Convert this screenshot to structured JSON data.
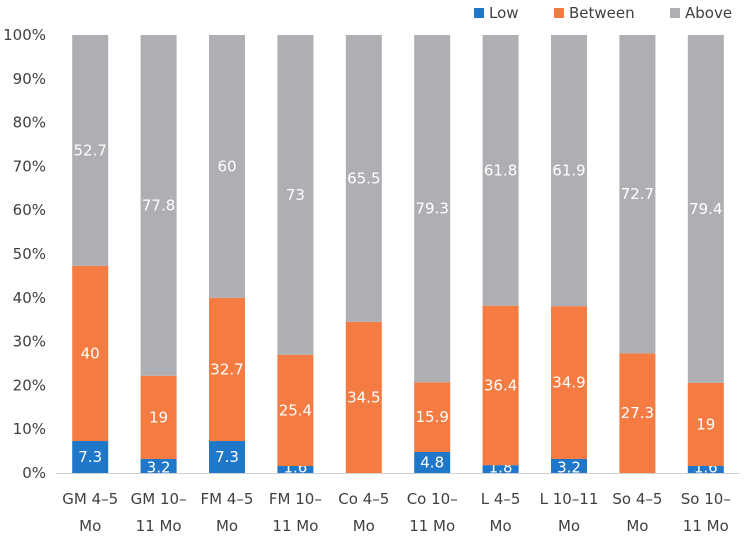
{
  "chart_data": {
    "type": "bar",
    "stacked": "percent",
    "title": "",
    "xlabel": "",
    "ylabel": "",
    "ylim": [
      0,
      100
    ],
    "yticks": [
      "0%",
      "10%",
      "20%",
      "30%",
      "40%",
      "50%",
      "60%",
      "70%",
      "80%",
      "90%",
      "100%"
    ],
    "legend_position": "top-right",
    "categories": [
      [
        "GM 4–5",
        "Mo"
      ],
      [
        "GM 10–",
        "11 Mo"
      ],
      [
        "FM 4–5",
        "Mo"
      ],
      [
        "FM 10–",
        "11 Mo"
      ],
      [
        "Co 4–5",
        "Mo"
      ],
      [
        "Co 10–",
        "11 Mo"
      ],
      [
        "L 4–5",
        "Mo"
      ],
      [
        "L 10–11",
        "Mo"
      ],
      [
        "So 4–5",
        "Mo"
      ],
      [
        "So 10–",
        "11 Mo"
      ]
    ],
    "series": [
      {
        "name": "Low",
        "color": "#1f77c9",
        "values": [
          7.3,
          3.2,
          7.3,
          1.6,
          0,
          4.8,
          1.8,
          3.2,
          0,
          1.6
        ],
        "labels": [
          "7.3",
          "3.2",
          "7.3",
          "1.6",
          "",
          "4.8",
          "1.8",
          "3.2",
          "",
          "1.6"
        ]
      },
      {
        "name": "Between",
        "color": "#f47c43",
        "values": [
          40,
          19,
          32.7,
          25.4,
          34.5,
          15.9,
          36.4,
          34.9,
          27.3,
          19
        ],
        "labels": [
          "40",
          "19",
          "32.7",
          "25.4",
          "34.5",
          "15.9",
          "36.4",
          "34.9",
          "27.3",
          "19"
        ]
      },
      {
        "name": "Above",
        "color": "#adafb2",
        "values": [
          52.7,
          77.8,
          60,
          73,
          65.5,
          79.3,
          61.8,
          61.9,
          72.7,
          79.4
        ],
        "labels": [
          "52.7",
          "77.8",
          "60",
          "73",
          "65.5",
          "79.3",
          "61.8",
          "61.9",
          "72.7",
          "79.4"
        ]
      }
    ]
  }
}
